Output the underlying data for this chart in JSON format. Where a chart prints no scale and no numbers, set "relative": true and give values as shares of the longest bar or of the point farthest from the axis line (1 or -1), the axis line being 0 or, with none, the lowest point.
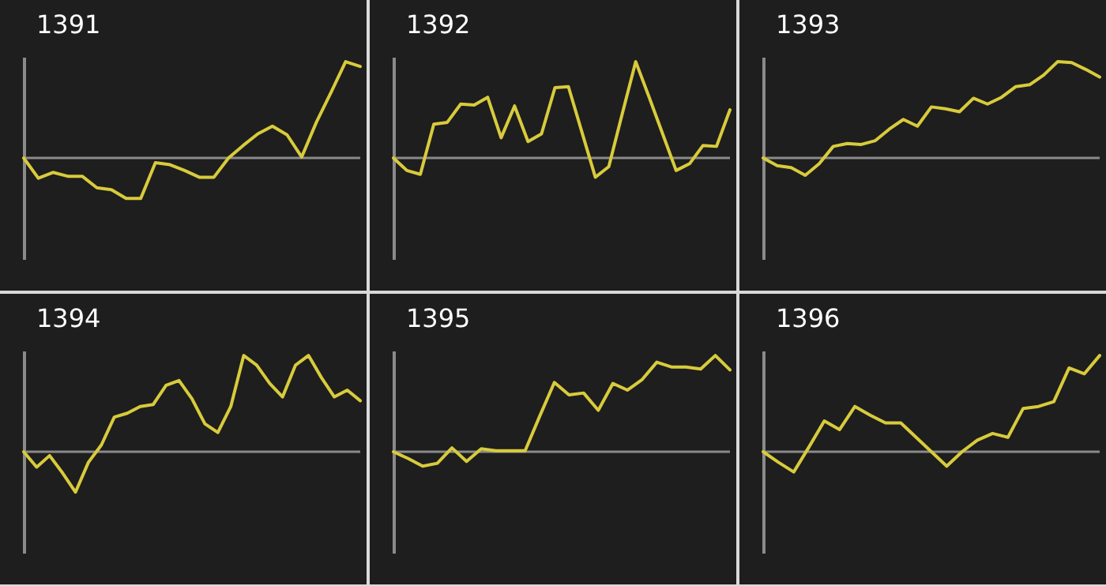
{
  "chart_data": [
    {
      "type": "line",
      "title": "1391",
      "relative": true,
      "categories": [
        null,
        null,
        null,
        null,
        null,
        null,
        null,
        null,
        null,
        null,
        null,
        null,
        null,
        null,
        null,
        null,
        null,
        null,
        null,
        null,
        null,
        null,
        null,
        null
      ],
      "series": [
        {
          "color": "#d8cb3c",
          "values": [
            0,
            -0.21,
            -0.15,
            -0.19,
            -0.19,
            -0.31,
            -0.33,
            -0.42,
            -0.42,
            -0.05,
            -0.07,
            -0.13,
            -0.2,
            -0.2,
            0,
            0.13,
            0.25,
            0.33,
            0.24,
            0.01,
            0.37,
            0.68,
            1,
            0.95
          ]
        }
      ]
    },
    {
      "type": "line",
      "title": "1392",
      "relative": true,
      "categories": [
        null,
        null,
        null,
        null,
        null,
        null,
        null,
        null,
        null,
        null,
        null,
        null,
        null,
        null,
        null,
        null,
        null,
        null,
        null,
        null,
        null,
        null,
        null,
        null,
        null,
        null
      ],
      "series": [
        {
          "color": "#d8cb3c",
          "values": [
            0,
            -0.13,
            -0.17,
            0.35,
            0.37,
            0.56,
            0.55,
            0.63,
            0.21,
            0.54,
            0.17,
            0.25,
            0.73,
            0.74,
            0.27,
            -0.2,
            -0.09,
            0.46,
            1,
            0.63,
            0.25,
            -0.13,
            -0.06,
            0.13,
            0.12,
            0.5
          ]
        }
      ]
    },
    {
      "type": "line",
      "title": "1393",
      "relative": true,
      "categories": [
        null,
        null,
        null,
        null,
        null,
        null,
        null,
        null,
        null,
        null,
        null,
        null,
        null,
        null,
        null,
        null,
        null,
        null,
        null,
        null,
        null,
        null,
        null,
        null,
        null
      ],
      "series": [
        {
          "color": "#d8cb3c",
          "values": [
            0,
            -0.08,
            -0.1,
            -0.18,
            -0.06,
            0.12,
            0.15,
            0.14,
            0.18,
            0.3,
            0.4,
            0.33,
            0.53,
            0.51,
            0.48,
            0.62,
            0.56,
            0.63,
            0.74,
            0.76,
            0.86,
            1,
            0.99,
            0.92,
            0.84
          ]
        }
      ]
    },
    {
      "type": "line",
      "title": "1394",
      "relative": true,
      "categories": [
        null,
        null,
        null,
        null,
        null,
        null,
        null,
        null,
        null,
        null,
        null,
        null,
        null,
        null,
        null,
        null,
        null,
        null,
        null,
        null,
        null,
        null,
        null,
        null,
        null,
        null,
        null
      ],
      "series": [
        {
          "color": "#d8cb3c",
          "values": [
            0,
            -0.16,
            -0.04,
            -0.22,
            -0.42,
            -0.11,
            0.07,
            0.36,
            0.4,
            0.47,
            0.49,
            0.69,
            0.74,
            0.55,
            0.29,
            0.2,
            0.47,
            1,
            0.9,
            0.71,
            0.57,
            0.9,
            1,
            0.77,
            0.57,
            0.64,
            0.53
          ]
        }
      ]
    },
    {
      "type": "line",
      "title": "1395",
      "relative": true,
      "categories": [
        null,
        null,
        null,
        null,
        null,
        null,
        null,
        null,
        null,
        null,
        null,
        null,
        null,
        null,
        null,
        null,
        null,
        null,
        null,
        null,
        null,
        null,
        null,
        null
      ],
      "series": [
        {
          "color": "#d8cb3c",
          "values": [
            0,
            -0.07,
            -0.15,
            -0.12,
            0.04,
            -0.1,
            0.03,
            0.01,
            0.01,
            0.01,
            0.37,
            0.72,
            0.59,
            0.61,
            0.43,
            0.71,
            0.64,
            0.75,
            0.93,
            0.88,
            0.88,
            0.86,
            1,
            0.85
          ]
        }
      ]
    },
    {
      "type": "line",
      "title": "1396",
      "relative": true,
      "categories": [
        null,
        null,
        null,
        null,
        null,
        null,
        null,
        null,
        null,
        null,
        null,
        null,
        null,
        null,
        null,
        null,
        null,
        null,
        null,
        null,
        null,
        null,
        null
      ],
      "series": [
        {
          "color": "#d8cb3c",
          "values": [
            0,
            -0.11,
            -0.21,
            0.05,
            0.32,
            0.23,
            0.47,
            0.38,
            0.3,
            0.3,
            0.15,
            0,
            -0.15,
            0,
            0.12,
            0.19,
            0.15,
            0.45,
            0.47,
            0.52,
            0.87,
            0.81,
            1
          ]
        }
      ]
    }
  ]
}
